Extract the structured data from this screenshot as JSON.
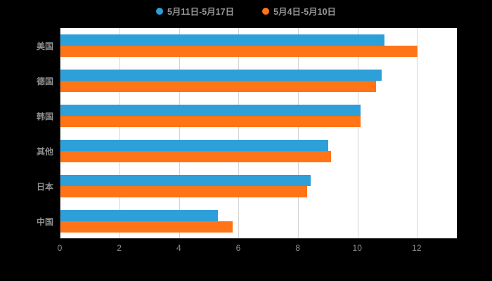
{
  "chart_data": {
    "type": "bar",
    "orientation": "horizontal",
    "title": "",
    "categories": [
      "美国",
      "德国",
      "韩国",
      "其他",
      "日本",
      "中国"
    ],
    "series": [
      {
        "name": "5月11日-5月17日",
        "color": "#2d9fd9",
        "values": [
          10.9,
          10.8,
          10.1,
          9.0,
          8.4,
          5.3
        ]
      },
      {
        "name": "5月4日-5月10日",
        "color": "#ff7417",
        "values": [
          12.0,
          10.6,
          10.1,
          9.1,
          8.3,
          5.8
        ]
      }
    ],
    "xlabel": "",
    "ylabel": "",
    "xlim": [
      0,
      13.35
    ],
    "xticks": [
      0,
      2,
      4,
      6,
      8,
      10,
      12
    ],
    "grid": true,
    "legend_position": "top"
  },
  "colors": {
    "page_background": "#000000",
    "plot_background": "#ffffff",
    "gridline": "#d4d4d4",
    "axis_line": "#333333",
    "tick_label": "#8f8f8f",
    "category_label": "#8f8f8f",
    "legend_label": "#969696"
  }
}
